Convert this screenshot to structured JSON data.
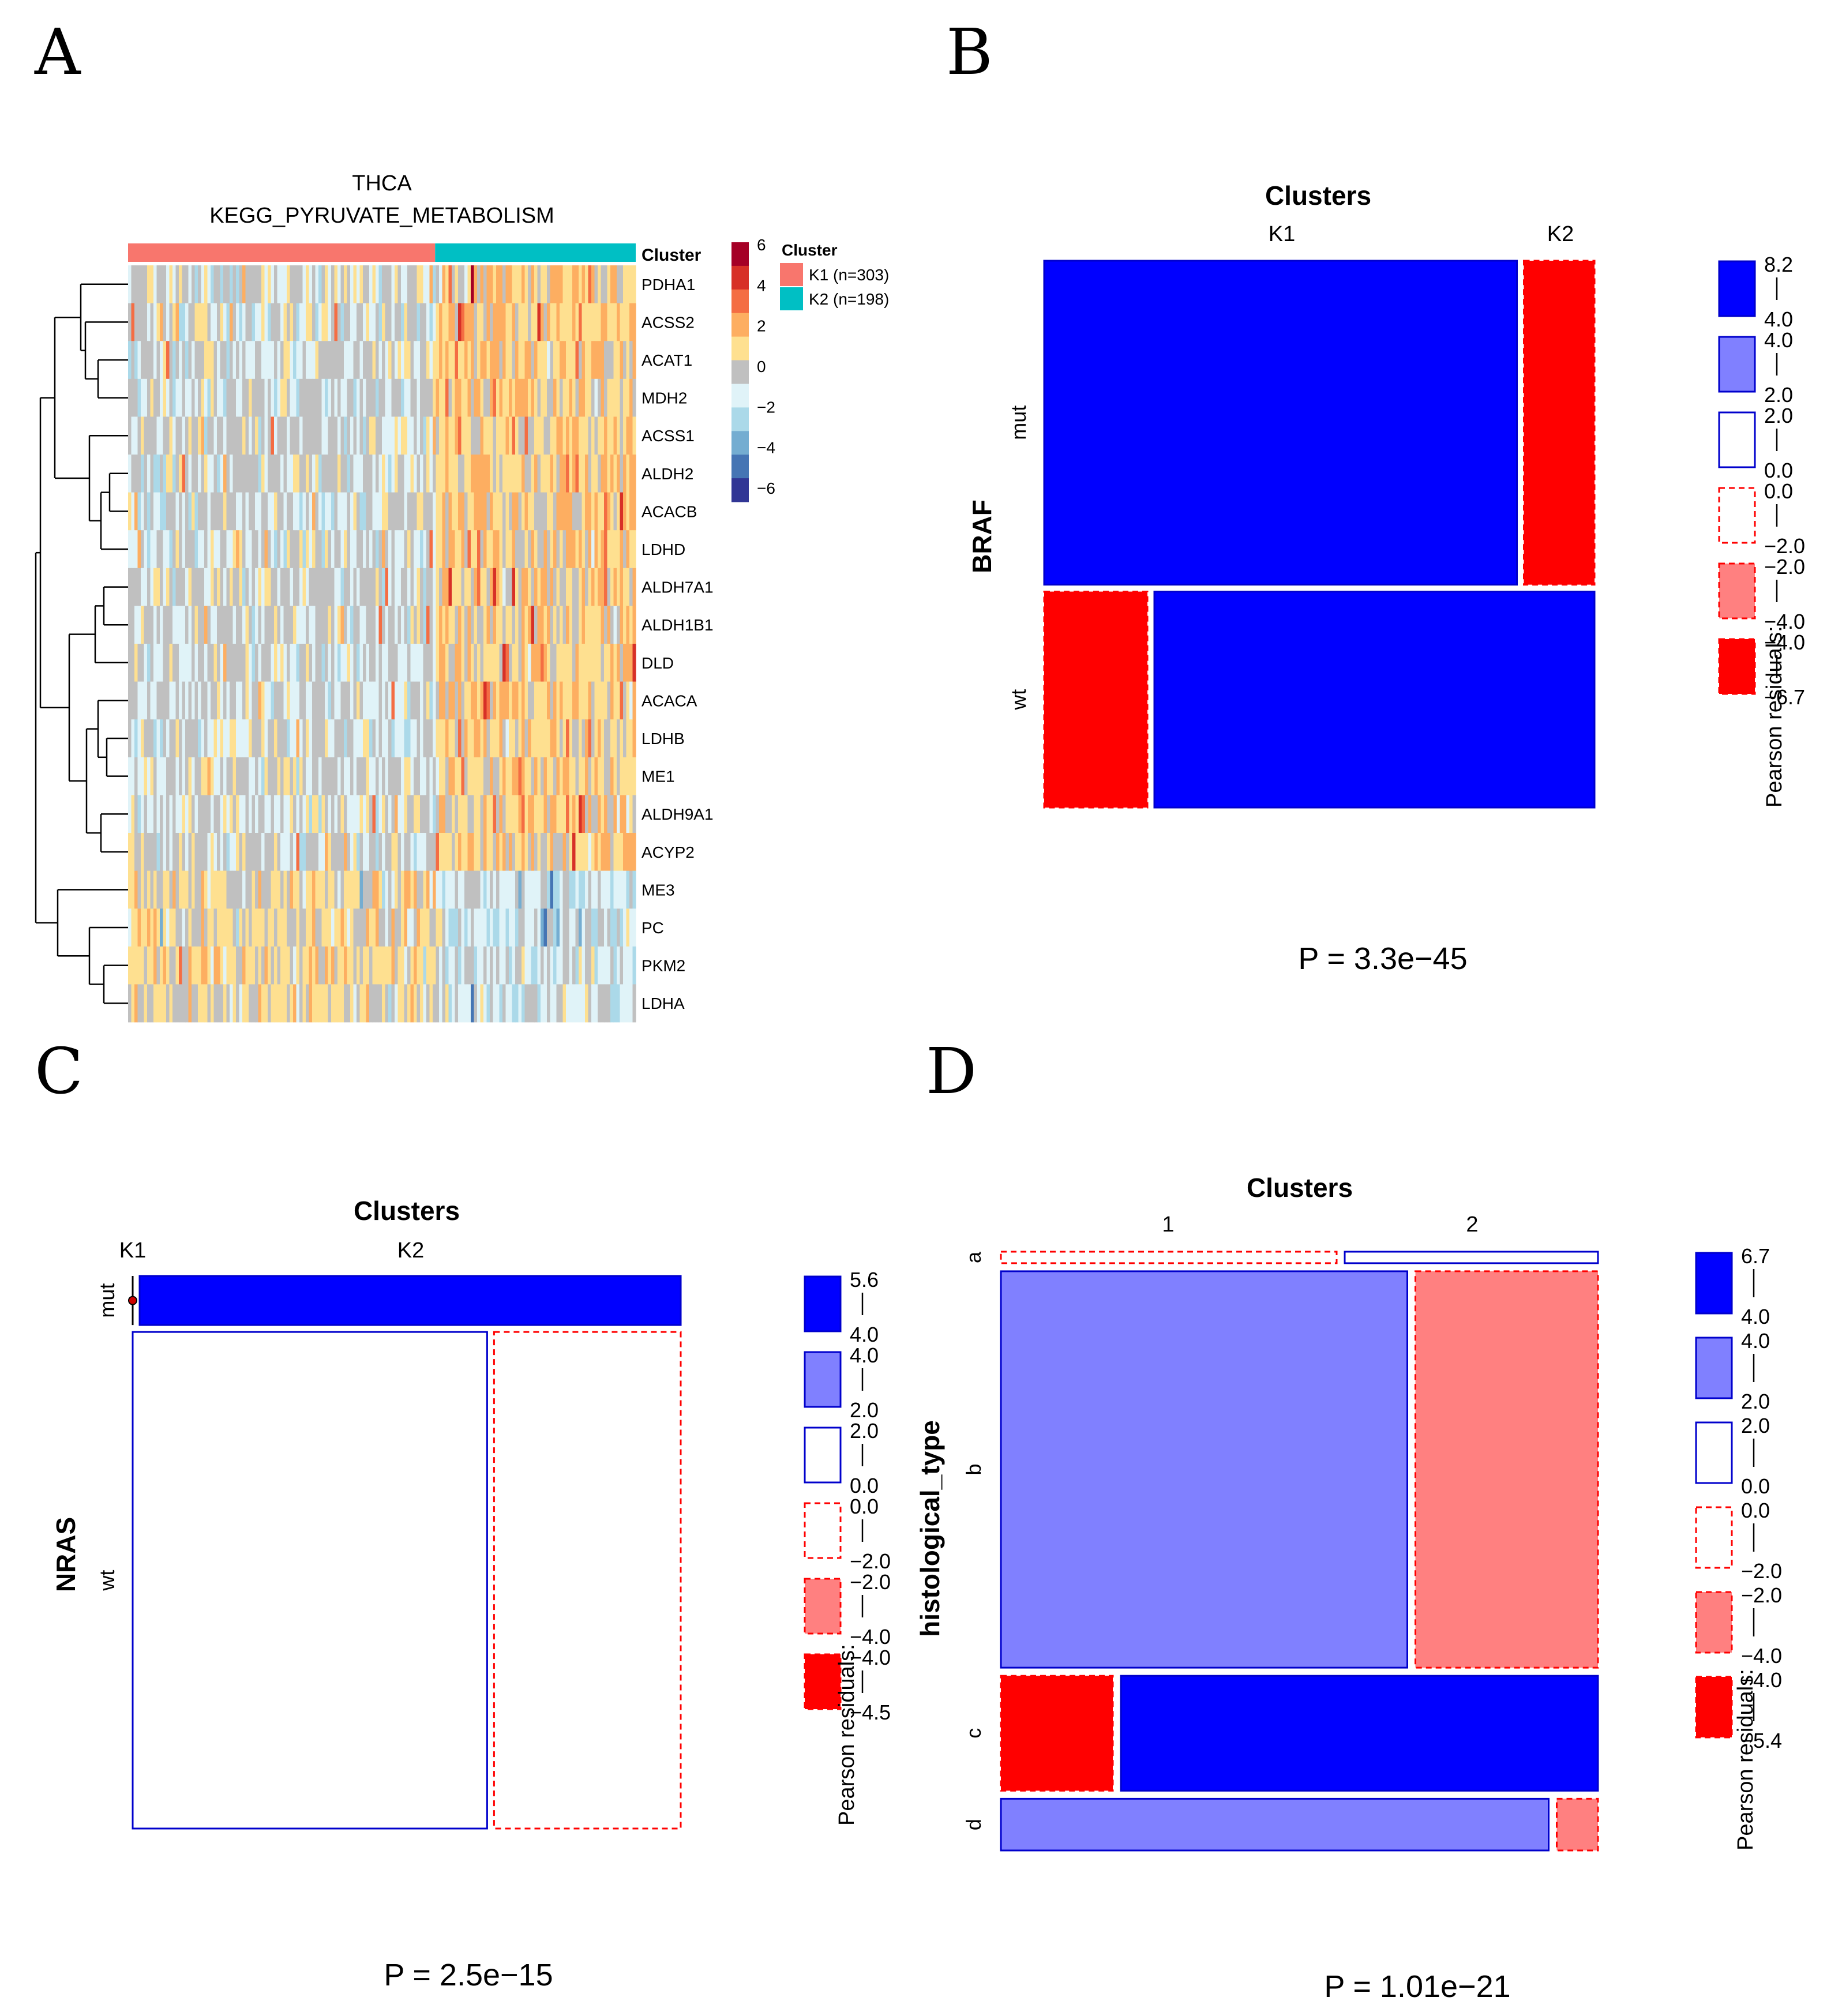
{
  "panels": {
    "A": {
      "letter": "A"
    },
    "B": {
      "letter": "B"
    },
    "C": {
      "letter": "C"
    },
    "D": {
      "letter": "D"
    }
  },
  "colors": {
    "k1": "#F8766D",
    "k2": "#00BFC4",
    "blue_strong": "#0000FF",
    "blue_light": "#8080FF",
    "red_strong": "#FF0000",
    "red_light": "#FF8080",
    "heat_palette": [
      "#313695",
      "#4575B4",
      "#74ADD1",
      "#ABD9E9",
      "#E0F3F8",
      "#C0C0C0",
      "#FEE090",
      "#FDAE61",
      "#F46D43",
      "#D73027",
      "#A50026"
    ]
  },
  "chart_data": [
    {
      "panel": "A",
      "type": "heatmap",
      "title": "THCA",
      "subtitle": "KEGG_PYRUVATE_METABOLISM",
      "annotation_label": "Cluster",
      "genes": [
        "PDHA1",
        "ACSS2",
        "ACAT1",
        "MDH2",
        "ACSS1",
        "ALDH2",
        "ACACB",
        "LDHD",
        "ALDH7A1",
        "ALDH1B1",
        "DLD",
        "ACACA",
        "LDHB",
        "ME1",
        "ALDH9A1",
        "ACYP2",
        "ME3",
        "PC",
        "PKM2",
        "LDHA"
      ],
      "clusters": [
        {
          "name": "K1",
          "n": 303,
          "label": "K1 (n=303)"
        },
        {
          "name": "K2",
          "n": 198,
          "label": "K2 (n=198)"
        }
      ],
      "legend_title": "Cluster",
      "color_scale_ticks": [
        "6",
        "4",
        "2",
        "0",
        "−2",
        "−4",
        "−6"
      ],
      "color_range": [
        -6,
        6
      ]
    },
    {
      "panel": "B",
      "type": "mosaic",
      "title": "Clusters",
      "xlabel": "Clusters",
      "ylabel": "BRAF",
      "columns": [
        "K1",
        "K2"
      ],
      "rows": [
        "mut",
        "wt"
      ],
      "row_fractions": [
        0.6,
        0.4
      ],
      "col_fractions_by_row": [
        [
          0.87,
          0.13
        ],
        [
          0.19,
          0.81
        ]
      ],
      "residual_class": [
        [
          "strong_pos",
          "strong_neg"
        ],
        [
          "strong_neg",
          "strong_pos"
        ]
      ],
      "p_value": "P = 3.3e−45",
      "legend_title": "Pearson residuals:",
      "legend_items": [
        {
          "class": "strong_pos",
          "hi": "8.2",
          "lo": "4.0"
        },
        {
          "class": "mid_pos",
          "hi": "4.0",
          "lo": "2.0"
        },
        {
          "class": "weak_pos",
          "hi": "2.0",
          "lo": "0.0"
        },
        {
          "class": "weak_neg",
          "hi": "0.0",
          "lo": "−2.0"
        },
        {
          "class": "mid_neg",
          "hi": "−2.0",
          "lo": "−4.0"
        },
        {
          "class": "strong_neg",
          "hi": "−4.0",
          "lo": "−6.7"
        }
      ]
    },
    {
      "panel": "C",
      "type": "mosaic",
      "title": "Clusters",
      "xlabel": "Clusters",
      "ylabel": "NRAS",
      "columns": [
        "K1",
        "K2"
      ],
      "rows": [
        "mut",
        "wt"
      ],
      "row_fractions": [
        0.09,
        0.91
      ],
      "col_fractions_by_row": [
        [
          0.0,
          1.0
        ],
        [
          0.655,
          0.345
        ]
      ],
      "residual_class": [
        [
          "strong_neg",
          "strong_pos"
        ],
        [
          "weak_pos",
          "weak_neg"
        ]
      ],
      "p_value": "P = 2.5e−15",
      "legend_title": "Pearson residuals:",
      "legend_items": [
        {
          "class": "strong_pos",
          "hi": "5.6",
          "lo": "4.0"
        },
        {
          "class": "mid_pos",
          "hi": "4.0",
          "lo": "2.0"
        },
        {
          "class": "weak_pos",
          "hi": "2.0",
          "lo": "0.0"
        },
        {
          "class": "weak_neg",
          "hi": "0.0",
          "lo": "−2.0"
        },
        {
          "class": "mid_neg",
          "hi": "−2.0",
          "lo": "−4.0"
        },
        {
          "class": "strong_neg",
          "hi": "−4.0",
          "lo": "−4.5"
        }
      ]
    },
    {
      "panel": "D",
      "type": "mosaic",
      "title": "Clusters",
      "xlabel": "Clusters",
      "ylabel": "histological_type",
      "columns": [
        "1",
        "2"
      ],
      "rows": [
        "a",
        "b",
        "c",
        "d"
      ],
      "row_fractions": [
        0.02,
        0.69,
        0.2,
        0.09
      ],
      "col_fractions_by_row": [
        [
          0.57,
          0.43
        ],
        [
          0.69,
          0.31
        ],
        [
          0.19,
          0.81
        ],
        [
          0.93,
          0.07
        ]
      ],
      "residual_class": [
        [
          "weak_neg",
          "weak_pos"
        ],
        [
          "mid_pos",
          "mid_neg"
        ],
        [
          "strong_neg",
          "strong_pos"
        ],
        [
          "mid_pos",
          "mid_neg"
        ]
      ],
      "p_value": "P = 1.01e−21",
      "legend_title": "Pearson residuals:",
      "legend_items": [
        {
          "class": "strong_pos",
          "hi": "6.7",
          "lo": "4.0"
        },
        {
          "class": "mid_pos",
          "hi": "4.0",
          "lo": "2.0"
        },
        {
          "class": "weak_pos",
          "hi": "2.0",
          "lo": "0.0"
        },
        {
          "class": "weak_neg",
          "hi": "0.0",
          "lo": "−2.0"
        },
        {
          "class": "mid_neg",
          "hi": "−2.0",
          "lo": "−4.0"
        },
        {
          "class": "strong_neg",
          "hi": "−4.0",
          "lo": "−5.4"
        }
      ]
    }
  ]
}
